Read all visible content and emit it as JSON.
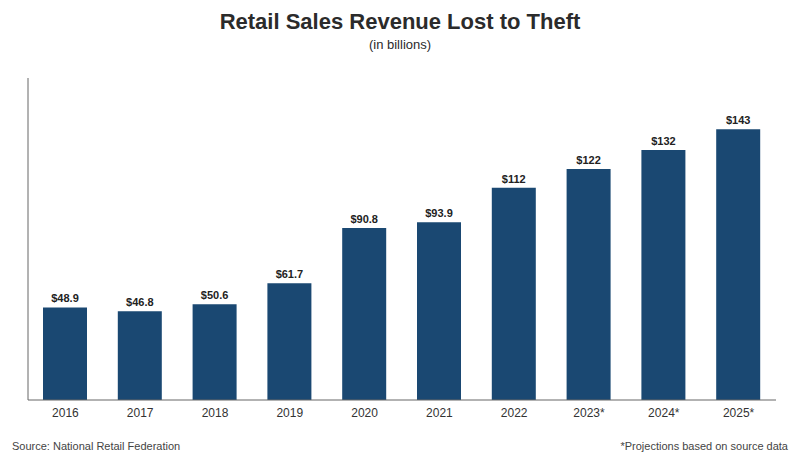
{
  "chart_data": {
    "type": "bar",
    "title": "Retail Sales Revenue Lost to Theft",
    "subtitle": "(in billions)",
    "categories": [
      "2016",
      "2017",
      "2018",
      "2019",
      "2020",
      "2021",
      "2022",
      "2023*",
      "2024*",
      "2025*"
    ],
    "values": [
      48.9,
      46.8,
      50.6,
      61.7,
      90.8,
      93.9,
      112,
      122,
      132,
      143
    ],
    "value_labels": [
      "$48.9",
      "$46.8",
      "$50.6",
      "$61.7",
      "$90.8",
      "$93.9",
      "$112",
      "$122",
      "$132",
      "$143"
    ],
    "data_labels": true,
    "color": "#1a4872",
    "ylim": [
      0,
      170
    ],
    "tick_labels": "x",
    "grid": false,
    "annotations": [
      "Source: National Retail Federation",
      "*Projections based on source data"
    ]
  }
}
